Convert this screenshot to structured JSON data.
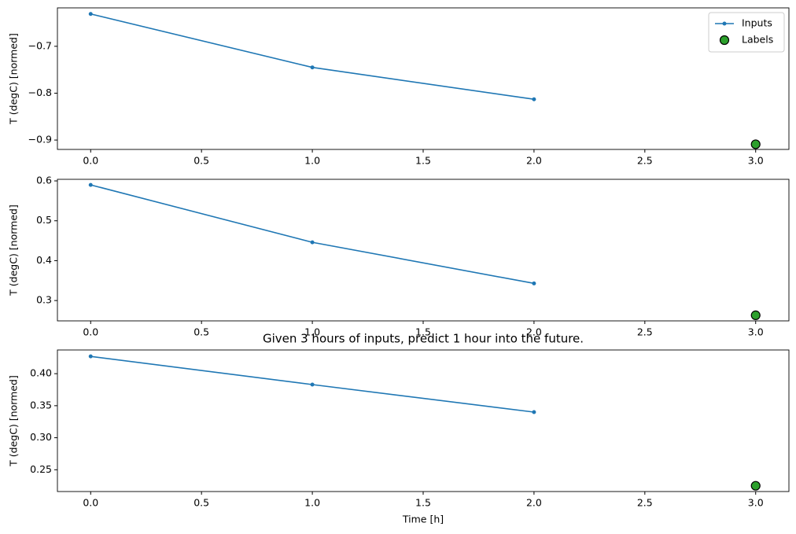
{
  "chart_data": [
    {
      "type": "line",
      "ylabel": "T (degC) [normed]",
      "legend": "upper right",
      "x": [
        0,
        1,
        2,
        3
      ],
      "series": [
        {
          "name": "Inputs",
          "type": "line",
          "color": "#1f77b4",
          "values": [
            -0.631,
            -0.745,
            -0.813,
            null
          ]
        },
        {
          "name": "Labels",
          "type": "scatter",
          "color": "#2ca02c",
          "values": [
            null,
            null,
            null,
            -0.909
          ]
        }
      ],
      "xlim": [
        -0.15,
        3.15
      ],
      "xticks": [
        {
          "value": 0,
          "label": "0.0"
        },
        0.5,
        {
          "value": 1,
          "label": "1.0"
        },
        1.5,
        {
          "value": 2,
          "label": "2.0"
        },
        2.5,
        {
          "value": 3,
          "label": "3.0"
        }
      ],
      "ylim": [
        -0.92,
        -0.618
      ],
      "yticks": [
        {
          "value": -0.9,
          "label": "−0.9"
        },
        {
          "value": -0.8,
          "label": "−0.8"
        },
        {
          "value": -0.7,
          "label": "−0.7"
        }
      ]
    },
    {
      "type": "line",
      "ylabel": "T (degC) [normed]",
      "x": [
        0,
        1,
        2,
        3
      ],
      "series": [
        {
          "type": "line",
          "color": "#1f77b4",
          "values": [
            0.59,
            0.446,
            0.343,
            null
          ]
        },
        {
          "type": "scatter",
          "color": "#2ca02c",
          "values": [
            null,
            null,
            null,
            0.263
          ]
        }
      ],
      "xlim": [
        -0.15,
        3.15
      ],
      "xticks": [
        {
          "value": 0,
          "label": "0.0"
        },
        0.5,
        {
          "value": 1,
          "label": "1.0"
        },
        1.5,
        {
          "value": 2,
          "label": "2.0"
        },
        2.5,
        {
          "value": 3,
          "label": "3.0"
        }
      ],
      "ylim": [
        0.249,
        0.604
      ],
      "yticks": [
        0.3,
        0.4,
        0.5,
        0.6
      ]
    },
    {
      "type": "line",
      "title": "Given 3 hours of inputs, predict 1 hour into the future.",
      "xlabel": "Time [h]",
      "ylabel": "T (degC) [normed]",
      "x": [
        0,
        1,
        2,
        3
      ],
      "series": [
        {
          "type": "line",
          "color": "#1f77b4",
          "values": [
            0.427,
            0.383,
            0.34,
            null
          ]
        },
        {
          "type": "scatter",
          "color": "#2ca02c",
          "values": [
            null,
            null,
            null,
            0.225
          ]
        }
      ],
      "xlim": [
        -0.15,
        3.15
      ],
      "xticks": [
        {
          "value": 0,
          "label": "0.0"
        },
        0.5,
        {
          "value": 1,
          "label": "1.0"
        },
        1.5,
        {
          "value": 2,
          "label": "2.0"
        },
        2.5,
        {
          "value": 3,
          "label": "3.0"
        }
      ],
      "ylim": [
        0.216,
        0.437
      ],
      "yticks": [
        0.25,
        {
          "value": 0.3,
          "label": "0.30"
        },
        0.35,
        {
          "value": 0.4,
          "label": "0.40"
        }
      ]
    }
  ]
}
